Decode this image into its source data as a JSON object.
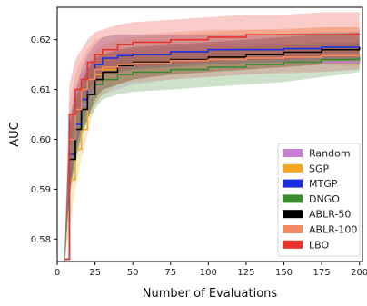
{
  "chart_data": {
    "type": "line",
    "title": "",
    "xlabel": "Number of Evaluations",
    "ylabel": "AUC",
    "xlim": [
      0,
      202
    ],
    "ylim": [
      0.5755,
      0.6265
    ],
    "xticks": [
      0,
      25,
      50,
      75,
      100,
      125,
      150,
      175,
      200
    ],
    "yticks": [
      0.58,
      0.59,
      0.6,
      0.61,
      0.62
    ],
    "ytick_labels": [
      "0.58",
      "0.59",
      "0.60",
      "0.61",
      "0.62"
    ],
    "grid": false,
    "legend_position": "bottom-right",
    "series": [
      {
        "name": "Random",
        "color": "#c77fd6",
        "x": [
          5,
          8,
          12,
          16,
          20,
          25,
          30,
          40,
          50,
          75,
          100,
          125,
          150,
          175,
          200
        ],
        "values": [
          0.576,
          0.596,
          0.603,
          0.607,
          0.609,
          0.611,
          0.612,
          0.613,
          0.6135,
          0.614,
          0.6145,
          0.615,
          0.6155,
          0.6155,
          0.616
        ],
        "lower": [
          0.575,
          0.589,
          0.597,
          0.602,
          0.605,
          0.607,
          0.609,
          0.61,
          0.611,
          0.612,
          0.6125,
          0.613,
          0.6135,
          0.6135,
          0.614
        ],
        "upper": [
          0.578,
          0.603,
          0.61,
          0.613,
          0.615,
          0.616,
          0.617,
          0.6175,
          0.618,
          0.6185,
          0.619,
          0.619,
          0.619,
          0.619,
          0.619
        ]
      },
      {
        "name": "SGP",
        "color": "#f5a623",
        "x": [
          5,
          8,
          12,
          16,
          20,
          25,
          30,
          40,
          50,
          75,
          100,
          125,
          150,
          175,
          200
        ],
        "values": [
          0.576,
          0.592,
          0.598,
          0.602,
          0.609,
          0.613,
          0.614,
          0.615,
          0.6155,
          0.616,
          0.6165,
          0.617,
          0.6175,
          0.618,
          0.618
        ],
        "lower": [
          0.575,
          0.582,
          0.59,
          0.596,
          0.601,
          0.607,
          0.609,
          0.611,
          0.612,
          0.613,
          0.6135,
          0.614,
          0.6145,
          0.615,
          0.6145
        ],
        "upper": [
          0.578,
          0.6,
          0.606,
          0.61,
          0.615,
          0.618,
          0.619,
          0.62,
          0.6205,
          0.621,
          0.6215,
          0.622,
          0.622,
          0.6225,
          0.6225
        ]
      },
      {
        "name": "MTGP",
        "color": "#1a2fe0",
        "x": [
          5,
          8,
          12,
          16,
          20,
          25,
          30,
          40,
          50,
          75,
          100,
          125,
          150,
          175,
          200
        ],
        "values": [
          0.576,
          0.597,
          0.603,
          0.608,
          0.612,
          0.615,
          0.6163,
          0.6168,
          0.617,
          0.6176,
          0.618,
          0.618,
          0.6182,
          0.6185,
          0.6185
        ],
        "lower": [
          0.575,
          0.59,
          0.598,
          0.603,
          0.607,
          0.611,
          0.613,
          0.6135,
          0.614,
          0.6145,
          0.615,
          0.6153,
          0.6155,
          0.6158,
          0.616
        ],
        "upper": [
          0.578,
          0.604,
          0.61,
          0.614,
          0.617,
          0.619,
          0.6205,
          0.621,
          0.621,
          0.621,
          0.621,
          0.621,
          0.6212,
          0.6215,
          0.6215
        ]
      },
      {
        "name": "DNGO",
        "color": "#3a8a2e",
        "x": [
          5,
          8,
          12,
          16,
          20,
          25,
          30,
          40,
          50,
          75,
          100,
          125,
          150,
          175,
          200
        ],
        "values": [
          0.576,
          0.596,
          0.602,
          0.606,
          0.609,
          0.611,
          0.612,
          0.613,
          0.6135,
          0.614,
          0.6145,
          0.615,
          0.6155,
          0.616,
          0.6165
        ],
        "lower": [
          0.575,
          0.588,
          0.595,
          0.6,
          0.604,
          0.606,
          0.608,
          0.609,
          0.6095,
          0.61,
          0.6105,
          0.611,
          0.6115,
          0.6125,
          0.6135
        ],
        "upper": [
          0.578,
          0.603,
          0.609,
          0.612,
          0.614,
          0.615,
          0.616,
          0.6165,
          0.617,
          0.6175,
          0.618,
          0.6185,
          0.619,
          0.6195,
          0.6195
        ]
      },
      {
        "name": "ABLR-50",
        "color": "#000000",
        "x": [
          5,
          8,
          12,
          16,
          20,
          25,
          30,
          40,
          50,
          75,
          100,
          125,
          150,
          175,
          200
        ],
        "values": [
          0.576,
          0.596,
          0.602,
          0.606,
          0.609,
          0.612,
          0.6135,
          0.6148,
          0.6155,
          0.616,
          0.6165,
          0.617,
          0.6175,
          0.618,
          0.6185
        ],
        "lower": [
          0.575,
          0.589,
          0.596,
          0.601,
          0.604,
          0.608,
          0.61,
          0.611,
          0.612,
          0.613,
          0.6135,
          0.614,
          0.6145,
          0.615,
          0.615
        ],
        "upper": [
          0.578,
          0.603,
          0.608,
          0.611,
          0.614,
          0.6165,
          0.617,
          0.618,
          0.6185,
          0.619,
          0.6195,
          0.62,
          0.6205,
          0.621,
          0.6215
        ]
      },
      {
        "name": "ABLR-100",
        "color": "#ef8a62",
        "x": [
          5,
          8,
          12,
          16,
          20,
          25,
          30,
          40,
          50,
          75,
          100,
          125,
          150,
          175,
          200
        ],
        "values": [
          0.576,
          0.6,
          0.606,
          0.61,
          0.612,
          0.614,
          0.6145,
          0.615,
          0.6153,
          0.6158,
          0.616,
          0.6163,
          0.6165,
          0.6168,
          0.617
        ],
        "lower": [
          0.575,
          0.592,
          0.599,
          0.604,
          0.607,
          0.609,
          0.6105,
          0.611,
          0.6115,
          0.612,
          0.6125,
          0.613,
          0.6132,
          0.6135,
          0.614
        ],
        "upper": [
          0.578,
          0.607,
          0.613,
          0.616,
          0.618,
          0.62,
          0.6205,
          0.621,
          0.621,
          0.6215,
          0.622,
          0.622,
          0.6222,
          0.6225,
          0.6225
        ]
      },
      {
        "name": "LBO",
        "color": "#e8322b",
        "x": [
          5,
          8,
          12,
          16,
          20,
          25,
          30,
          40,
          50,
          75,
          100,
          125,
          150,
          175,
          200
        ],
        "values": [
          0.576,
          0.605,
          0.61,
          0.612,
          0.6155,
          0.617,
          0.618,
          0.619,
          0.6195,
          0.62,
          0.6205,
          0.621,
          0.621,
          0.621,
          0.621
        ],
        "lower": [
          0.575,
          0.598,
          0.604,
          0.607,
          0.61,
          0.612,
          0.613,
          0.614,
          0.6145,
          0.615,
          0.6155,
          0.616,
          0.616,
          0.6165,
          0.6165
        ],
        "upper": [
          0.578,
          0.611,
          0.616,
          0.618,
          0.62,
          0.6215,
          0.622,
          0.623,
          0.6235,
          0.624,
          0.6245,
          0.625,
          0.625,
          0.6255,
          0.6255
        ]
      }
    ]
  }
}
